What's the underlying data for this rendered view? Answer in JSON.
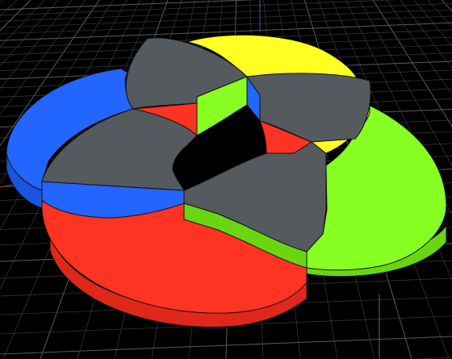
{
  "viewport": {
    "background": "#000000",
    "grid_color": "#3a3a3a",
    "grid_major_color": "#5a5a5a",
    "axis_x_color": "#8a2a2a",
    "axis_y_color": "#2a7a2a",
    "axis_z_color": "#3a4a8a"
  },
  "model": {
    "discs": [
      {
        "name": "red",
        "color": "#ff3322",
        "side_color": "#e0281a"
      },
      {
        "name": "green",
        "color": "#88ff22",
        "side_color": "#6ad612"
      },
      {
        "name": "blue",
        "color": "#2266ff",
        "side_color": "#1a55e0"
      },
      {
        "name": "yellow",
        "color": "#ffff22",
        "side_color": "#e0e014"
      }
    ],
    "overlap_color": "#555a5e",
    "edge_color": "#111111"
  }
}
